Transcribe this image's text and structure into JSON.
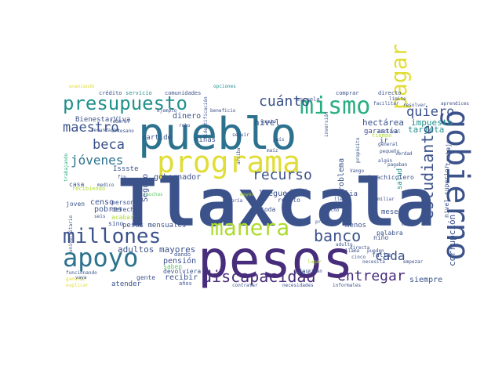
{
  "palette": {
    "dark_purple": "#472d7b",
    "indigo": "#3b528b",
    "slate_blue": "#3f5f8f",
    "teal": "#2c728e",
    "sea_green": "#21918c",
    "green": "#28ae80",
    "light_green": "#5ec962",
    "lime": "#addc30",
    "yellow": "#e1dd37",
    "purple": "#440154"
  },
  "words": [
    {
      "text": "Tlaxcala",
      "color": "#3b528b"
    },
    {
      "text": "pesos",
      "color": "#472d7b"
    },
    {
      "text": "pueblo",
      "color": "#2c728e"
    },
    {
      "text": "programa",
      "color": "#e1dd37"
    },
    {
      "text": "gobierno",
      "color": "#3b528b"
    },
    {
      "text": "apoyo",
      "color": "#2c728e"
    },
    {
      "text": "millones",
      "color": "#3b528b"
    },
    {
      "text": "manera",
      "color": "#addc30"
    },
    {
      "text": "presupuesto",
      "color": "#21918c"
    },
    {
      "text": "mismo",
      "color": "#28ae80"
    },
    {
      "text": "pagar",
      "color": "#e1dd37"
    },
    {
      "text": "banco",
      "color": "#3b528b"
    },
    {
      "text": "discapacidad",
      "color": "#472d7b"
    },
    {
      "text": "entregar",
      "color": "#472d7b"
    },
    {
      "text": "estudiante",
      "color": "#3b528b"
    },
    {
      "text": "recurso",
      "color": "#3b528b"
    },
    {
      "text": "cuánto",
      "color": "#3b528b"
    },
    {
      "text": "quiero",
      "color": "#3b528b"
    },
    {
      "text": "maestro",
      "color": "#3b528b"
    },
    {
      "text": "beca",
      "color": "#3b528b"
    },
    {
      "text": "jóvenes",
      "color": "#2c728e"
    },
    {
      "text": "cada",
      "color": "#3b528b"
    },
    {
      "text": "adultos mayores",
      "color": "#3b528b"
    },
    {
      "text": "nivel",
      "color": "#3b528b"
    },
    {
      "text": "hectárea",
      "color": "#3b528b"
    },
    {
      "text": "tarjeta",
      "color": "#21918c"
    },
    {
      "text": "impuesto",
      "color": "#21918c"
    },
    {
      "text": "corrupción",
      "color": "#3b528b"
    },
    {
      "text": "siempre",
      "color": "#3b528b"
    },
    {
      "text": "gobernador",
      "color": "#3b528b"
    },
    {
      "text": "pensión",
      "color": "#3b528b"
    },
    {
      "text": "recibir",
      "color": "#3b528b"
    },
    {
      "text": "dinero",
      "color": "#3b528b"
    },
    {
      "text": "censo",
      "color": "#3b528b"
    },
    {
      "text": "pobres",
      "color": "#3b528b"
    },
    {
      "text": "llegue",
      "color": "#3b528b"
    },
    {
      "text": "Seguro",
      "color": "#3b528b"
    },
    {
      "text": "BienestarViva",
      "color": "#3b528b"
    },
    {
      "text": "Issste",
      "color": "#3b528b"
    },
    {
      "text": "partido",
      "color": "#3b528b"
    },
    {
      "text": "niñas",
      "color": "#3b528b"
    },
    {
      "text": "problema",
      "color": "#3b528b"
    },
    {
      "text": "familia",
      "color": "#3b528b"
    },
    {
      "text": "garantía",
      "color": "#3b528b"
    },
    {
      "text": "meses",
      "color": "#3b528b"
    },
    {
      "text": "salud",
      "color": "#21918c"
    },
    {
      "text": "estudiante",
      "color": "#3b528b"
    },
    {
      "text": "trabajo",
      "color": "#3b528b"
    },
    {
      "text": "nivel superior",
      "color": "#3b528b"
    },
    {
      "text": "toda",
      "color": "#3b528b"
    },
    {
      "text": "repito",
      "color": "#3b528b"
    },
    {
      "text": "pesos mensuales",
      "color": "#3b528b"
    },
    {
      "text": "menos",
      "color": "#3b528b"
    },
    {
      "text": "palabra",
      "color": "#3b528b"
    },
    {
      "text": "falta",
      "color": "#3b528b"
    },
    {
      "text": "niño",
      "color": "#3b528b"
    },
    {
      "text": "atender",
      "color": "#3b528b"
    },
    {
      "text": "gente",
      "color": "#3b528b"
    },
    {
      "text": "persona",
      "color": "#3b528b"
    },
    {
      "text": "derecho",
      "color": "#3b528b"
    },
    {
      "text": "joven",
      "color": "#3b528b"
    },
    {
      "text": "casa",
      "color": "#3b528b"
    },
    {
      "text": "sino",
      "color": "#3b528b"
    },
    {
      "text": "acabar",
      "color": "#addc30"
    },
    {
      "text": "precio",
      "color": "#3b528b"
    },
    {
      "text": "saben",
      "color": "#5ec962"
    },
    {
      "text": "devolviera",
      "color": "#3b528b"
    },
    {
      "text": "dando",
      "color": "#3b528b"
    },
    {
      "text": "años",
      "color": "#3b528b"
    },
    {
      "text": "huachicolero",
      "color": "#3b528b"
    },
    {
      "text": "ir",
      "color": "#3b528b"
    },
    {
      "text": "crédito",
      "color": "#3b528b"
    },
    {
      "text": "servicio",
      "color": "#21918c"
    },
    {
      "text": "comunidades",
      "color": "#3b528b"
    },
    {
      "text": "escuela",
      "color": "#3b528b"
    },
    {
      "text": "comprar",
      "color": "#3b528b"
    },
    {
      "text": "directo",
      "color": "#3b528b"
    },
    {
      "text": "federal",
      "color": "#3b528b"
    },
    {
      "text": "ejemplo",
      "color": "#3b528b"
    },
    {
      "text": "beneficio",
      "color": "#3b528b"
    },
    {
      "text": "recibiendo",
      "color": "#addc30"
    },
    {
      "text": "trabajando",
      "color": "#28ae80"
    },
    {
      "text": "muchas",
      "color": "#5ec962"
    },
    {
      "text": "adulto",
      "color": "#3b528b"
    },
    {
      "text": "necesita",
      "color": "#3b528b"
    },
    {
      "text": "pueden",
      "color": "#3b528b"
    },
    {
      "text": "llama",
      "color": "#3b528b"
    },
    {
      "text": "directa",
      "color": "#3b528b"
    },
    {
      "text": "productor",
      "color": "#3b528b"
    },
    {
      "text": "empezar",
      "color": "#3b528b"
    },
    {
      "text": "saque",
      "color": "#3b528b"
    },
    {
      "text": "pequeño",
      "color": "#3b528b"
    },
    {
      "text": "general",
      "color": "#3b528b"
    },
    {
      "text": "pagaban",
      "color": "#3b528b"
    },
    {
      "text": "tiempo",
      "color": "#addc30"
    },
    {
      "text": "nacional",
      "color": "#3b528b"
    },
    {
      "text": "llega",
      "color": "#3b528b"
    },
    {
      "text": "mal",
      "color": "#3b528b"
    },
    {
      "text": "avanzando",
      "color": "#e1dd37"
    },
    {
      "text": "opciones",
      "color": "#21918c"
    },
    {
      "text": "contratar",
      "color": "#3b528b"
    },
    {
      "text": "necesidades",
      "color": "#3b528b"
    },
    {
      "text": "informales",
      "color": "#3b528b"
    },
    {
      "text": "funcionando",
      "color": "#3b528b"
    },
    {
      "text": "ganando",
      "color": "#e1dd37"
    },
    {
      "text": "explicar",
      "color": "#e1dd37"
    },
    {
      "text": "minoría",
      "color": "#3b528b"
    },
    {
      "text": "mayor",
      "color": "#addc30"
    },
    {
      "text": "maíz",
      "color": "#3b528b"
    },
    {
      "text": "aprendices",
      "color": "#3b528b"
    },
    {
      "text": "facilitar",
      "color": "#3b528b"
    },
    {
      "text": "universitario",
      "color": "#3b528b"
    },
    {
      "text": "medico",
      "color": "#3b528b"
    },
    {
      "text": "robo",
      "color": "#3b528b"
    },
    {
      "text": "país",
      "color": "#3b528b"
    },
    {
      "text": "inversión",
      "color": "#3b528b"
    },
    {
      "text": "identificación",
      "color": "#3b528b"
    },
    {
      "text": "verdad",
      "color": "#3b528b"
    },
    {
      "text": "nuevas",
      "color": "#3b528b"
    },
    {
      "text": "terminan",
      "color": "#3b528b"
    },
    {
      "text": "cinco",
      "color": "#3b528b"
    },
    {
      "text": "ocho",
      "color": "#3b528b"
    },
    {
      "text": "lugar",
      "color": "#addc30"
    },
    {
      "text": "seguir",
      "color": "#3b528b"
    },
    {
      "text": "medio",
      "color": "#3b528b"
    },
    {
      "text": "familiar",
      "color": "#3b528b"
    },
    {
      "text": "arriba",
      "color": "#3b528b"
    },
    {
      "text": "gasto",
      "color": "#3b528b"
    },
    {
      "text": "fin",
      "color": "#3b528b"
    },
    {
      "text": "seis",
      "color": "#3b528b"
    },
    {
      "text": "vaya",
      "color": "#3b528b"
    },
    {
      "text": "propósito",
      "color": "#3b528b"
    },
    {
      "text": "secundaria",
      "color": "#3b528b"
    },
    {
      "text": "artesano",
      "color": "#3b528b"
    },
    {
      "text": "límite",
      "color": "#3b528b"
    },
    {
      "text": "resolver",
      "color": "#3b528b"
    },
    {
      "text": "Vango",
      "color": "#3b528b"
    },
    {
      "text": "algún",
      "color": "#3b528b"
    }
  ]
}
